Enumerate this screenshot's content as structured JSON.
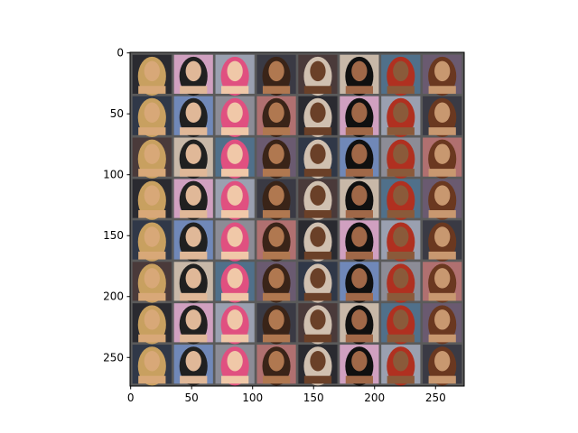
{
  "chart_data": {
    "type": "image",
    "xlim": [
      -0.5,
      273.5
    ],
    "ylim": [
      273.5,
      -0.5
    ],
    "xticks": [
      0,
      50,
      100,
      150,
      200,
      250
    ],
    "yticks": [
      0,
      50,
      100,
      150,
      200,
      250
    ]
  }
}
